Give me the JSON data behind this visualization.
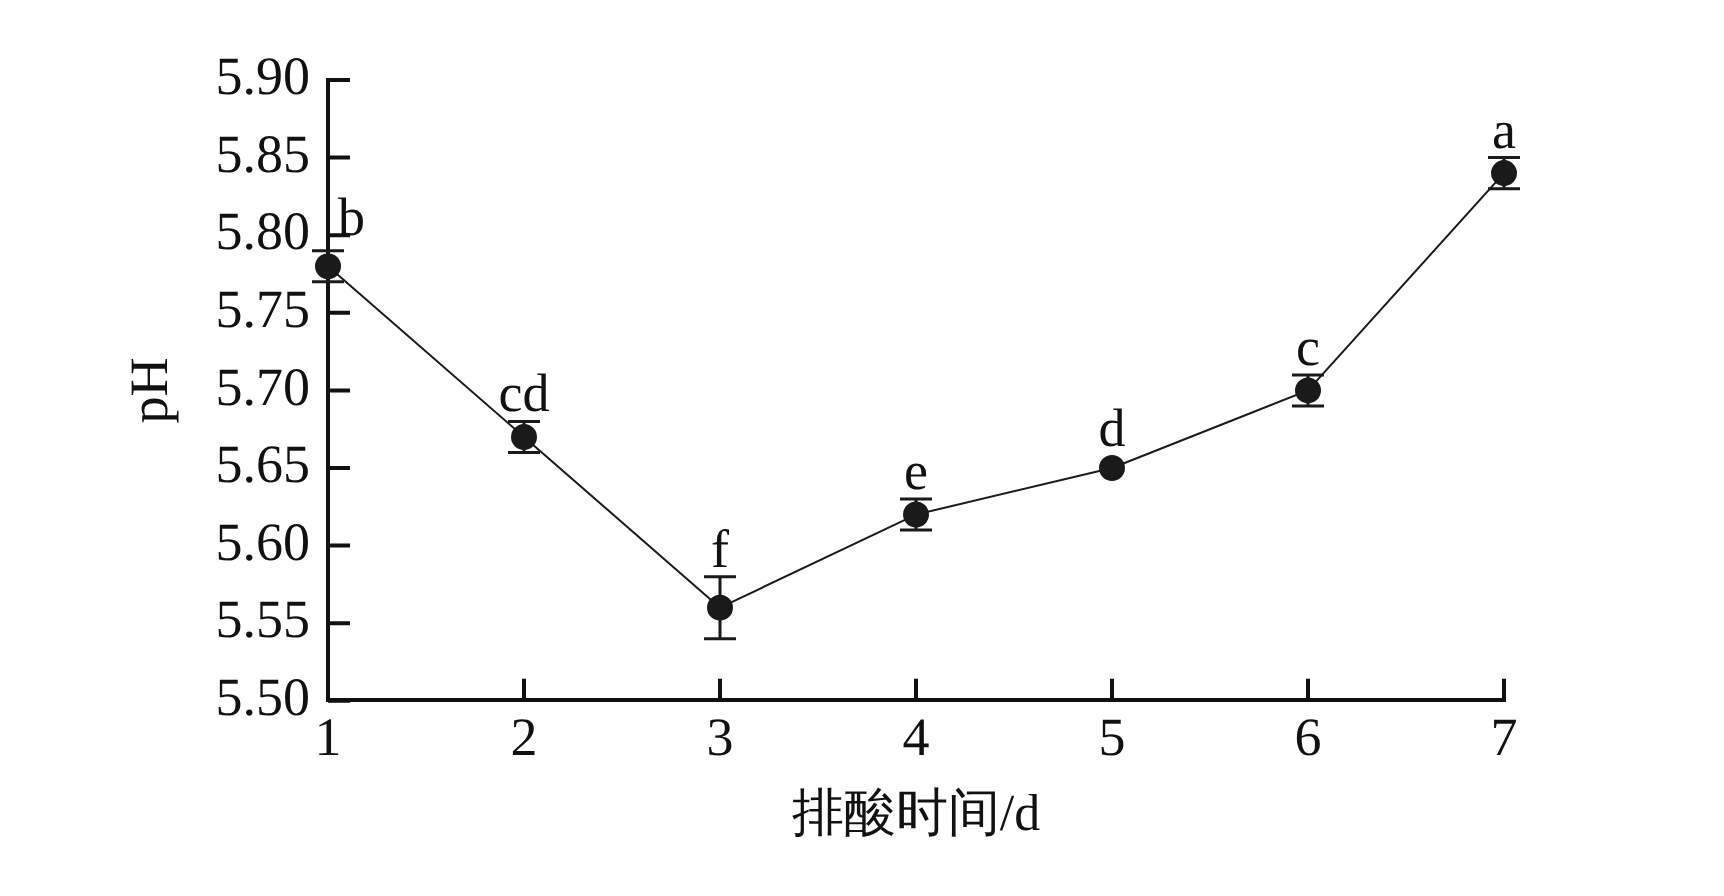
{
  "chart_data": {
    "type": "line",
    "xlabel": "排酸时间/d",
    "ylabel": "pH",
    "x": [
      1,
      2,
      3,
      4,
      5,
      6,
      7
    ],
    "series": [
      {
        "color": "#1a1a1a",
        "values": [
          5.78,
          5.67,
          5.56,
          5.62,
          5.65,
          5.7,
          5.84
        ],
        "errors": [
          0.01,
          0.01,
          0.02,
          0.01,
          null,
          0.01,
          0.01
        ]
      }
    ],
    "xlim": [
      1,
      7
    ],
    "xticks": [
      1,
      2,
      3,
      4,
      5,
      6,
      7
    ],
    "ylim": [
      5.5,
      5.9
    ],
    "yticks": [
      {
        "value": 5.5,
        "label": "5.50"
      },
      {
        "value": 5.55,
        "label": "5.55"
      },
      {
        "value": 5.6,
        "label": "5.60"
      },
      {
        "value": 5.65,
        "label": "5.65"
      },
      {
        "value": 5.7,
        "label": "5.70"
      },
      {
        "value": 5.75,
        "label": "5.75"
      },
      {
        "value": 5.8,
        "label": "5.80"
      },
      {
        "value": 5.85,
        "label": "5.85"
      },
      {
        "value": 5.9,
        "label": "5.90"
      }
    ],
    "marker": "circle",
    "annotations": [
      {
        "text": "b",
        "x": 1,
        "y": 5.78
      },
      {
        "text": "cd",
        "x": 2,
        "y": 5.67
      },
      {
        "text": "f",
        "x": 3,
        "y": 5.56
      },
      {
        "text": "e",
        "x": 4,
        "y": 5.62
      },
      {
        "text": "d",
        "x": 5,
        "y": 5.65
      },
      {
        "text": "c",
        "x": 6,
        "y": 5.7
      },
      {
        "text": "a",
        "x": 7,
        "y": 5.84
      }
    ]
  }
}
